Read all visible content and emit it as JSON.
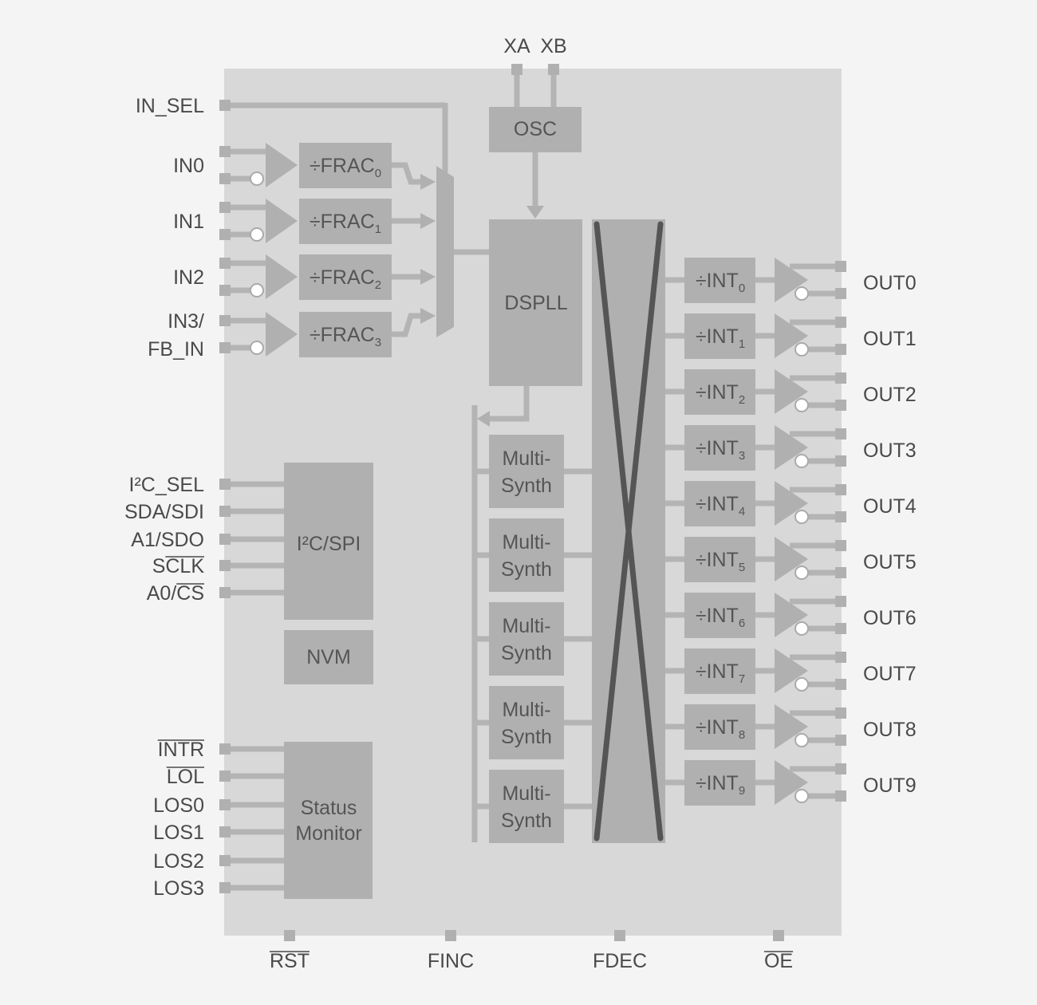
{
  "colors": {
    "background": "#f4f4f4",
    "chip": "#d8d8d8",
    "block": "#b0b0b0",
    "line": "#b4b4b4",
    "crossbar_x": "#555555",
    "text": "#4a4a4a"
  },
  "top_pins": [
    "XA",
    "XB"
  ],
  "in_sel": "IN_SEL",
  "inputs": [
    {
      "label": [
        "IN0"
      ],
      "divider": "÷FRAC",
      "sub": "0"
    },
    {
      "label": [
        "IN1"
      ],
      "divider": "÷FRAC",
      "sub": "1"
    },
    {
      "label": [
        "IN2"
      ],
      "divider": "÷FRAC",
      "sub": "2"
    },
    {
      "label": [
        "IN3/",
        "FB_IN"
      ],
      "divider": "÷FRAC",
      "sub": "3"
    }
  ],
  "blocks": {
    "osc": "OSC",
    "dspll": "DSPLL",
    "i2c_spi": "I²C/SPI",
    "nvm": "NVM",
    "status_monitor": [
      "Status",
      "Monitor"
    ]
  },
  "multisynth": [
    [
      "Multi-",
      "Synth"
    ],
    [
      "Multi-",
      "Synth"
    ],
    [
      "Multi-",
      "Synth"
    ],
    [
      "Multi-",
      "Synth"
    ],
    [
      "Multi-",
      "Synth"
    ]
  ],
  "serial_pins": [
    {
      "text": "I²C_SEL"
    },
    {
      "text": "SDA/SDI"
    },
    {
      "text": "A1/SDO"
    },
    {
      "text": "SCLK",
      "overline": "CLK"
    },
    {
      "text": "A0/CS",
      "overline": "CS"
    }
  ],
  "status_pins": [
    {
      "text": "INTR",
      "overline": "INTR"
    },
    {
      "text": "LOL",
      "overline": "LOL"
    },
    {
      "text": "LOS0"
    },
    {
      "text": "LOS1"
    },
    {
      "text": "LOS2"
    },
    {
      "text": "LOS3"
    }
  ],
  "outputs": [
    {
      "divider": "÷INT",
      "sub": "0",
      "label": "OUT0"
    },
    {
      "divider": "÷INT",
      "sub": "1",
      "label": "OUT1"
    },
    {
      "divider": "÷INT",
      "sub": "2",
      "label": "OUT2"
    },
    {
      "divider": "÷INT",
      "sub": "3",
      "label": "OUT3"
    },
    {
      "divider": "÷INT",
      "sub": "4",
      "label": "OUT4"
    },
    {
      "divider": "÷INT",
      "sub": "5",
      "label": "OUT5"
    },
    {
      "divider": "÷INT",
      "sub": "6",
      "label": "OUT6"
    },
    {
      "divider": "÷INT",
      "sub": "7",
      "label": "OUT7"
    },
    {
      "divider": "÷INT",
      "sub": "8",
      "label": "OUT8"
    },
    {
      "divider": "÷INT",
      "sub": "9",
      "label": "OUT9"
    }
  ],
  "bottom_pins": [
    {
      "text": "RST",
      "overline": "RST"
    },
    {
      "text": "FINC"
    },
    {
      "text": "FDEC"
    },
    {
      "text": "OE",
      "overline": "OE"
    }
  ]
}
